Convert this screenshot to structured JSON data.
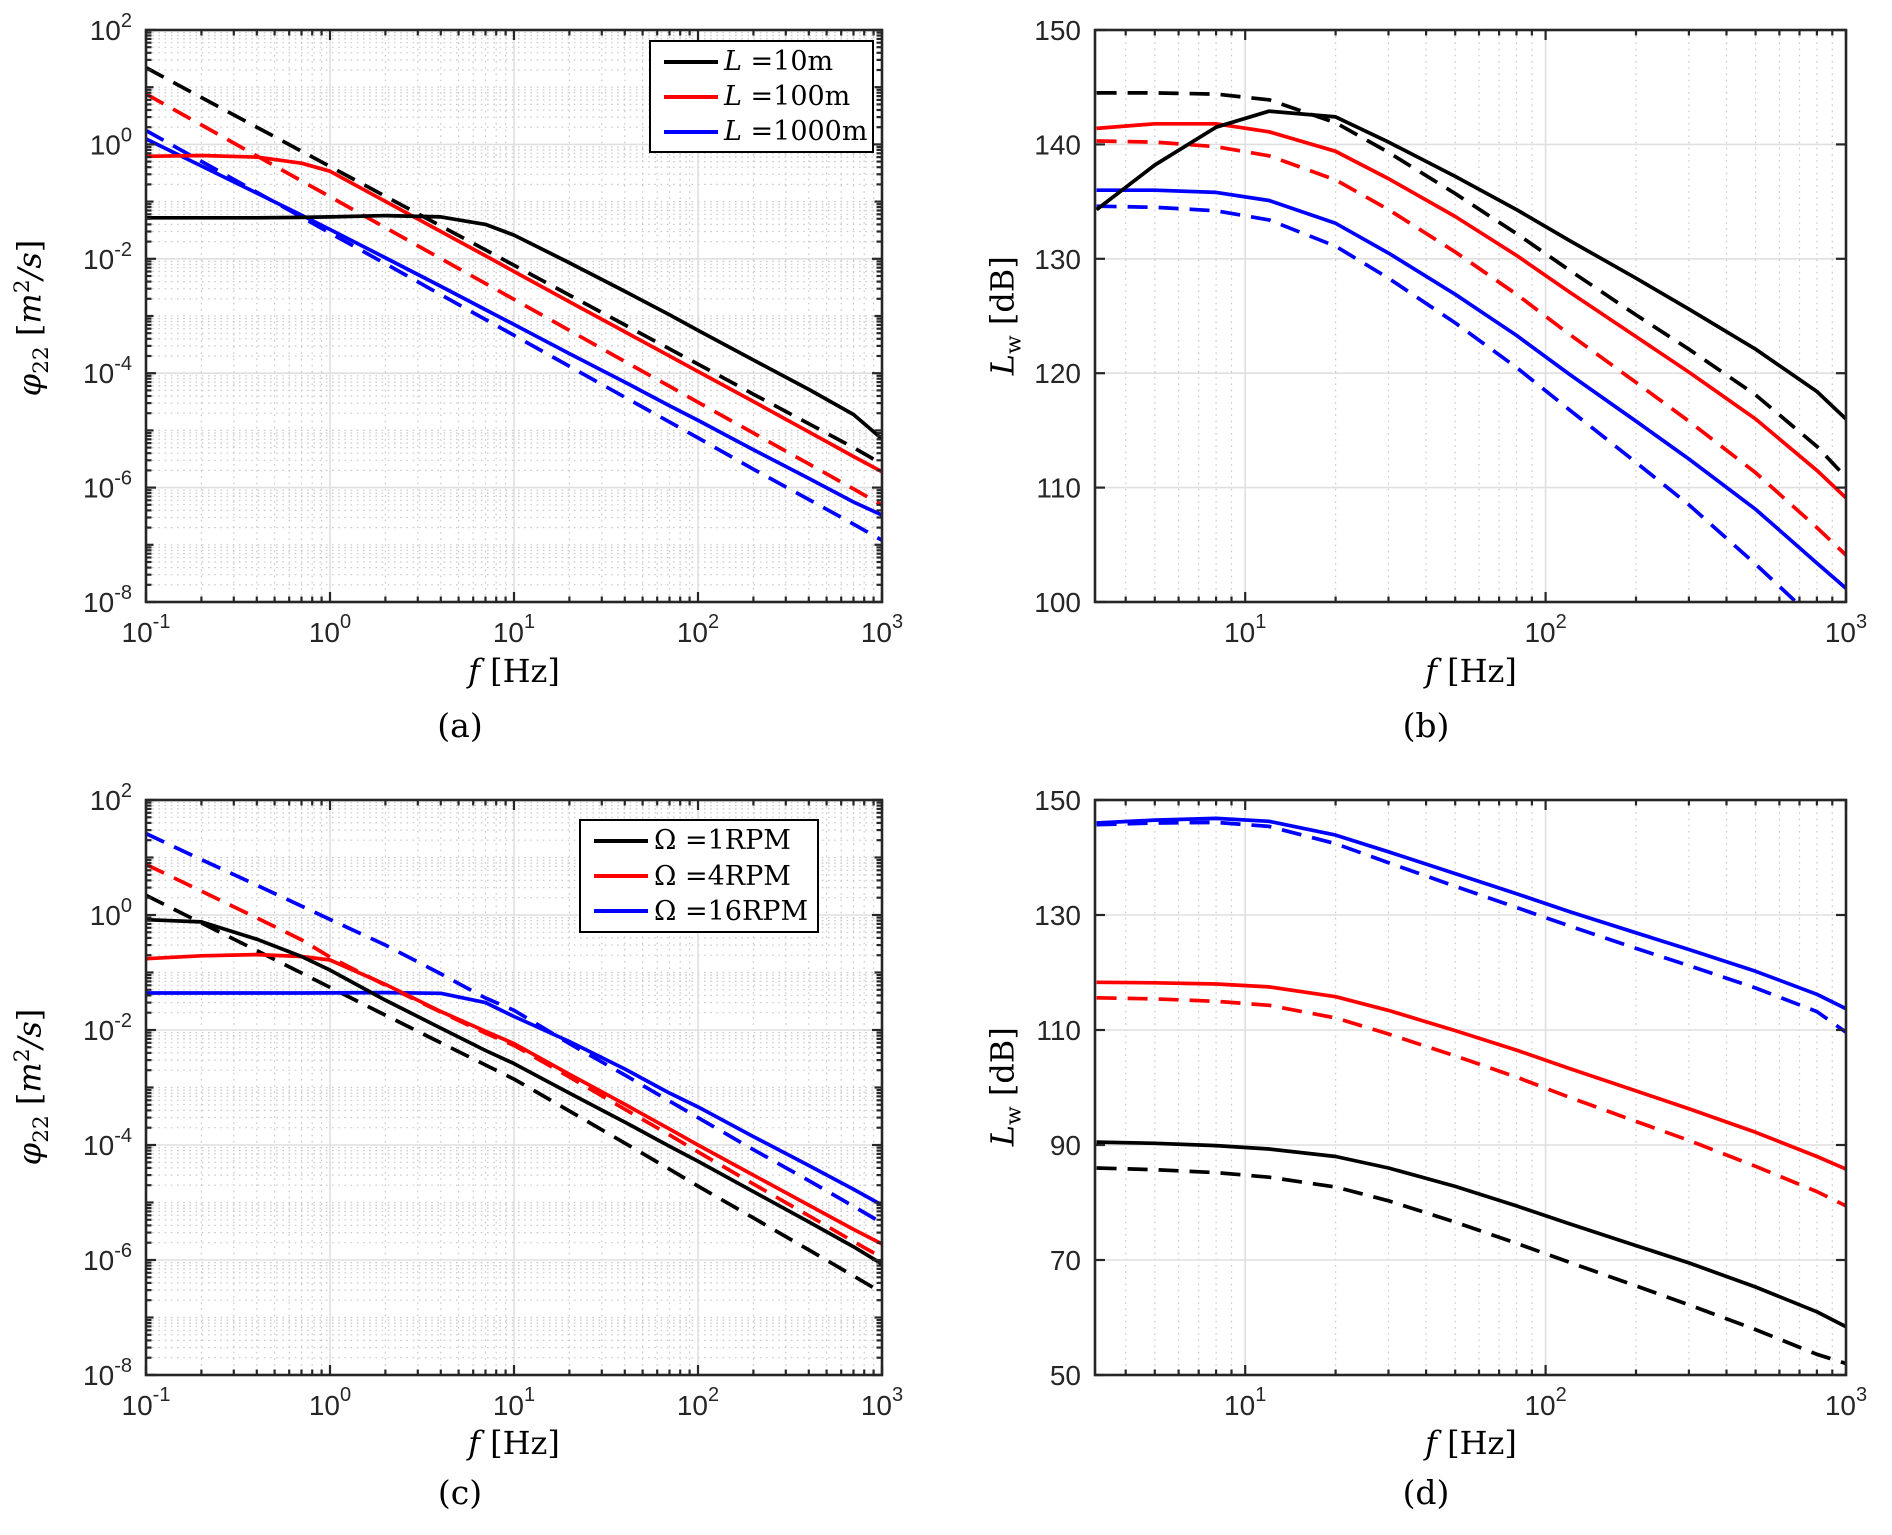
{
  "figure": {
    "background": "#ffffff",
    "palette": {
      "black": "#000000",
      "red": "#ff0000",
      "blue": "#0000ff"
    },
    "labels": {
      "xlabel": {
        "sym": "f",
        "rest": " [Hz]"
      },
      "ylabel_phi": {
        "sym": "φ",
        "sub": "22",
        "b1": " [",
        "m": "m",
        "sup": "2",
        "b2": "/s",
        "b3": "]"
      },
      "ylabel_lw": {
        "sym": "L",
        "sub": "w",
        "rest": " [dB]"
      }
    }
  },
  "chart_data": [
    {
      "id": "a",
      "caption": "(a)",
      "type": "line",
      "title": "",
      "xlabel": "f [Hz]",
      "ylabel": "phi_22 [m^2/s]",
      "xscale": "log",
      "yscale": "log",
      "xlim": [
        0.1,
        1000
      ],
      "ylim": [
        1e-08,
        100
      ],
      "x_tick_exponents": [
        -1,
        0,
        1,
        2,
        3
      ],
      "y_tick_exponents": [
        2,
        0,
        -2,
        -4,
        -6,
        -8
      ],
      "grid": "major-solid + minor-dotted",
      "legend_position": "northeast",
      "f": [
        0.1,
        0.2,
        0.4,
        0.7,
        1,
        2,
        4,
        7,
        10,
        20,
        40,
        70,
        100,
        200,
        400,
        700,
        1000
      ],
      "series": [
        {
          "name": "L=1000m dashed",
          "color": "#0000ff",
          "linestyle": "dashed",
          "values": [
            1.75,
            0.505,
            0.146,
            0.0536,
            0.0283,
            0.0082,
            0.00236,
            0.00087,
            0.00046,
            0.000132,
            3.8e-05,
            1.4e-05,
            7.4e-06,
            2.1e-06,
            6.2e-07,
            2.3e-07,
            1.2e-07
          ]
        },
        {
          "name": "L=100m dashed",
          "color": "#ff0000",
          "linestyle": "dashed",
          "values": [
            7.6,
            2.19,
            0.63,
            0.23,
            0.122,
            0.035,
            0.0101,
            0.0037,
            0.00195,
            0.00056,
            0.00016,
            5.9e-05,
            3.1e-05,
            9e-06,
            2.6e-06,
            9.5e-07,
            4.9e-07
          ]
        },
        {
          "name": "L=10m dashed",
          "color": "#000000",
          "linestyle": "dashed",
          "values": [
            22,
            6.6,
            2.0,
            0.76,
            0.41,
            0.124,
            0.0374,
            0.0143,
            0.0077,
            0.00232,
            0.0007,
            0.000266,
            0.000144,
            4.3e-05,
            1.31e-05,
            5e-06,
            2.6e-06
          ]
        },
        {
          "name": "L=1000m solid",
          "color": "#0000ff",
          "linestyle": "solid",
          "values": [
            1.25,
            0.42,
            0.141,
            0.058,
            0.0325,
            0.0104,
            0.0033,
            0.00129,
            0.00071,
            0.00022,
            7e-05,
            2.7e-05,
            1.5e-05,
            4.6e-06,
            1.45e-06,
            5.6e-07,
            3.3e-07
          ]
        },
        {
          "name": "L=100m solid",
          "color": "#ff0000",
          "linestyle": "solid",
          "values": [
            0.62,
            0.64,
            0.6,
            0.47,
            0.34,
            0.101,
            0.03,
            0.0113,
            0.006,
            0.00178,
            0.00053,
            0.0002,
            0.000107,
            3.2e-05,
            9.4e-06,
            3.5e-06,
            1.9e-06
          ]
        },
        {
          "name": "L=10m solid",
          "color": "#000000",
          "linestyle": "solid",
          "values": [
            0.052,
            0.052,
            0.052,
            0.053,
            0.054,
            0.057,
            0.054,
            0.04,
            0.026,
            0.0085,
            0.0027,
            0.00105,
            0.00056,
            0.00017,
            5.2e-05,
            1.9e-05,
            7.1e-06
          ]
        }
      ],
      "legend": {
        "entries": [
          {
            "sym": "L",
            "rest": " =10m",
            "color": "#000000"
          },
          {
            "sym": "L",
            "rest": " =100m",
            "color": "#ff0000"
          },
          {
            "sym": "L",
            "rest": " =1000m",
            "color": "#0000ff"
          }
        ]
      }
    },
    {
      "id": "b",
      "caption": "(b)",
      "type": "line",
      "title": "",
      "xlabel": "f [Hz]",
      "ylabel": "L_w [dB]",
      "xscale": "log",
      "yscale": "linear",
      "xlim": [
        3.162,
        1000
      ],
      "ylim": [
        100,
        150
      ],
      "x_tick_exponents": [
        1,
        2,
        3
      ],
      "y_ticks": [
        100,
        110,
        120,
        130,
        140,
        150
      ],
      "grid": "major-solid + x-minor-dotted",
      "f": [
        3.2,
        5,
        8,
        12,
        20,
        30,
        50,
        80,
        120,
        200,
        300,
        500,
        800,
        1000
      ],
      "series": [
        {
          "name": "L=1000m dashed",
          "color": "#0000ff",
          "linestyle": "dashed",
          "values": [
            134.6,
            134.5,
            134.2,
            133.4,
            131.1,
            128.3,
            124.4,
            120.5,
            116.8,
            112.2,
            108.5,
            103.3,
            98.3,
            96.0
          ]
        },
        {
          "name": "L=100m dashed",
          "color": "#ff0000",
          "linestyle": "dashed",
          "values": [
            140.3,
            140.2,
            139.8,
            139.0,
            136.9,
            134.3,
            130.6,
            126.9,
            123.4,
            119.2,
            115.8,
            111.3,
            106.5,
            104.1
          ]
        },
        {
          "name": "L=10m dashed",
          "color": "#000000",
          "linestyle": "dashed",
          "values": [
            144.5,
            144.5,
            144.4,
            143.9,
            141.9,
            139.3,
            135.7,
            132.2,
            129.0,
            125.1,
            122.1,
            118.1,
            113.6,
            110.9
          ]
        },
        {
          "name": "L=1000m solid",
          "color": "#0000ff",
          "linestyle": "solid",
          "values": [
            136.0,
            136.0,
            135.8,
            135.1,
            133.1,
            130.5,
            126.9,
            123.3,
            119.9,
            115.8,
            112.5,
            108.1,
            103.4,
            101.2
          ]
        },
        {
          "name": "L=100m solid",
          "color": "#ff0000",
          "linestyle": "solid",
          "values": [
            141.4,
            141.8,
            141.8,
            141.1,
            139.4,
            137.0,
            133.7,
            130.3,
            127.1,
            123.2,
            120.1,
            116.0,
            111.5,
            109.1
          ]
        },
        {
          "name": "L=10m solid",
          "color": "#000000",
          "linestyle": "solid",
          "values": [
            134.3,
            138.2,
            141.5,
            142.9,
            142.4,
            140.2,
            137.2,
            134.3,
            131.6,
            128.3,
            125.6,
            122.1,
            118.4,
            116.0
          ]
        }
      ]
    },
    {
      "id": "c",
      "caption": "(c)",
      "type": "line",
      "title": "",
      "xlabel": "f [Hz]",
      "ylabel": "phi_22 [m^2/s]",
      "xscale": "log",
      "yscale": "log",
      "xlim": [
        0.1,
        1000
      ],
      "ylim": [
        1e-08,
        100
      ],
      "x_tick_exponents": [
        -1,
        0,
        1,
        2,
        3
      ],
      "y_tick_exponents": [
        2,
        0,
        -2,
        -4,
        -6,
        -8
      ],
      "grid": "major-solid + minor-dotted",
      "legend_position": "northeast",
      "f": [
        0.1,
        0.2,
        0.4,
        0.7,
        1,
        2,
        4,
        7,
        10,
        20,
        40,
        70,
        100,
        200,
        400,
        700,
        1000
      ],
      "series": [
        {
          "name": "Omega=16RPM dashed",
          "color": "#0000ff",
          "linestyle": "dashed",
          "values": [
            26,
            9.2,
            3.3,
            1.43,
            0.84,
            0.3,
            0.095,
            0.036,
            0.022,
            0.0058,
            0.00165,
            0.00058,
            0.0003,
            8.3e-05,
            2.4e-05,
            8.6e-06,
            4.4e-06
          ]
        },
        {
          "name": "Omega=4RPM dashed",
          "color": "#ff0000",
          "linestyle": "dashed",
          "values": [
            7.6,
            2.6,
            0.89,
            0.37,
            0.185,
            0.06,
            0.0205,
            0.0088,
            0.0054,
            0.00152,
            0.00042,
            0.00015,
            7.6e-05,
            2.1e-05,
            5.9e-06,
            2.1e-06,
            1.1e-06
          ]
        },
        {
          "name": "Omega=1RPM dashed",
          "color": "#000000",
          "linestyle": "dashed",
          "values": [
            2.2,
            0.725,
            0.24,
            0.098,
            0.055,
            0.0181,
            0.006,
            0.00246,
            0.0014,
            0.00039,
            0.000108,
            3.8e-05,
            1.93e-05,
            5.4e-06,
            1.5e-06,
            5.3e-07,
            2.7e-07
          ]
        },
        {
          "name": "Omega=16RPM solid",
          "color": "#0000ff",
          "linestyle": "solid",
          "values": [
            0.044,
            0.044,
            0.044,
            0.044,
            0.0442,
            0.0448,
            0.0435,
            0.03,
            0.0172,
            0.0063,
            0.0021,
            0.0008,
            0.00046,
            0.00014,
            4.4e-05,
            1.7e-05,
            9e-06
          ]
        },
        {
          "name": "Omega=4RPM solid",
          "color": "#ff0000",
          "linestyle": "solid",
          "values": [
            0.174,
            0.195,
            0.205,
            0.19,
            0.165,
            0.062,
            0.021,
            0.0095,
            0.0058,
            0.0017,
            0.00051,
            0.00019,
            0.0001,
            3e-05,
            9e-06,
            3.4e-06,
            1.9e-06
          ]
        },
        {
          "name": "Omega=1RPM solid",
          "color": "#000000",
          "linestyle": "solid",
          "values": [
            0.83,
            0.76,
            0.38,
            0.19,
            0.11,
            0.033,
            0.0108,
            0.0044,
            0.0026,
            0.0008,
            0.00025,
            9.5e-05,
            5.2e-05,
            1.55e-05,
            4.6e-06,
            1.7e-06,
            8.5e-07
          ]
        }
      ],
      "legend": {
        "entries": [
          {
            "sym": "Ω",
            "rest": " =1RPM",
            "color": "#000000"
          },
          {
            "sym": "Ω",
            "rest": " =4RPM",
            "color": "#ff0000"
          },
          {
            "sym": "Ω",
            "rest": " =16RPM",
            "color": "#0000ff"
          }
        ]
      }
    },
    {
      "id": "d",
      "caption": "(d)",
      "type": "line",
      "title": "",
      "xlabel": "f [Hz]",
      "ylabel": "L_w [dB]",
      "xscale": "log",
      "yscale": "linear",
      "xlim": [
        3.162,
        1000
      ],
      "ylim": [
        50,
        150
      ],
      "x_tick_exponents": [
        1,
        2,
        3
      ],
      "y_ticks": [
        50,
        70,
        90,
        110,
        130,
        150
      ],
      "grid": "major-solid + x-minor-dotted",
      "f": [
        3.2,
        5,
        8,
        12,
        20,
        30,
        50,
        80,
        120,
        200,
        300,
        500,
        800,
        1000
      ],
      "series": [
        {
          "name": "Omega=16RPM dashed",
          "color": "#0000ff",
          "linestyle": "dashed",
          "values": [
            145.7,
            146.0,
            146.1,
            145.4,
            142.4,
            139.1,
            135.0,
            131.3,
            128.1,
            124.2,
            121.2,
            117.3,
            113.2,
            109.6
          ]
        },
        {
          "name": "Omega=4RPM dashed",
          "color": "#ff0000",
          "linestyle": "dashed",
          "values": [
            115.6,
            115.4,
            115.0,
            114.3,
            112.1,
            109.3,
            105.5,
            101.8,
            98.3,
            94.1,
            90.8,
            86.3,
            81.9,
            79.4
          ]
        },
        {
          "name": "Omega=1RPM dashed",
          "color": "#000000",
          "linestyle": "dashed",
          "values": [
            86.0,
            85.7,
            85.2,
            84.4,
            82.7,
            80.3,
            76.6,
            72.9,
            69.6,
            65.5,
            62.2,
            57.9,
            53.6,
            52.0
          ]
        },
        {
          "name": "Omega=16RPM solid",
          "color": "#0000ff",
          "linestyle": "solid",
          "values": [
            146.0,
            146.5,
            146.8,
            146.3,
            143.9,
            141.0,
            137.2,
            133.7,
            130.6,
            126.9,
            124.0,
            120.2,
            116.2,
            113.7
          ]
        },
        {
          "name": "Omega=4RPM solid",
          "color": "#ff0000",
          "linestyle": "solid",
          "values": [
            118.3,
            118.2,
            118.0,
            117.5,
            115.8,
            113.4,
            109.9,
            106.5,
            103.3,
            99.4,
            96.3,
            92.2,
            88.0,
            85.8
          ]
        },
        {
          "name": "Omega=1RPM solid",
          "color": "#000000",
          "linestyle": "solid",
          "values": [
            90.5,
            90.3,
            89.9,
            89.3,
            88.0,
            86.0,
            82.8,
            79.4,
            76.3,
            72.5,
            69.5,
            65.3,
            61.0,
            58.4
          ]
        }
      ]
    }
  ]
}
